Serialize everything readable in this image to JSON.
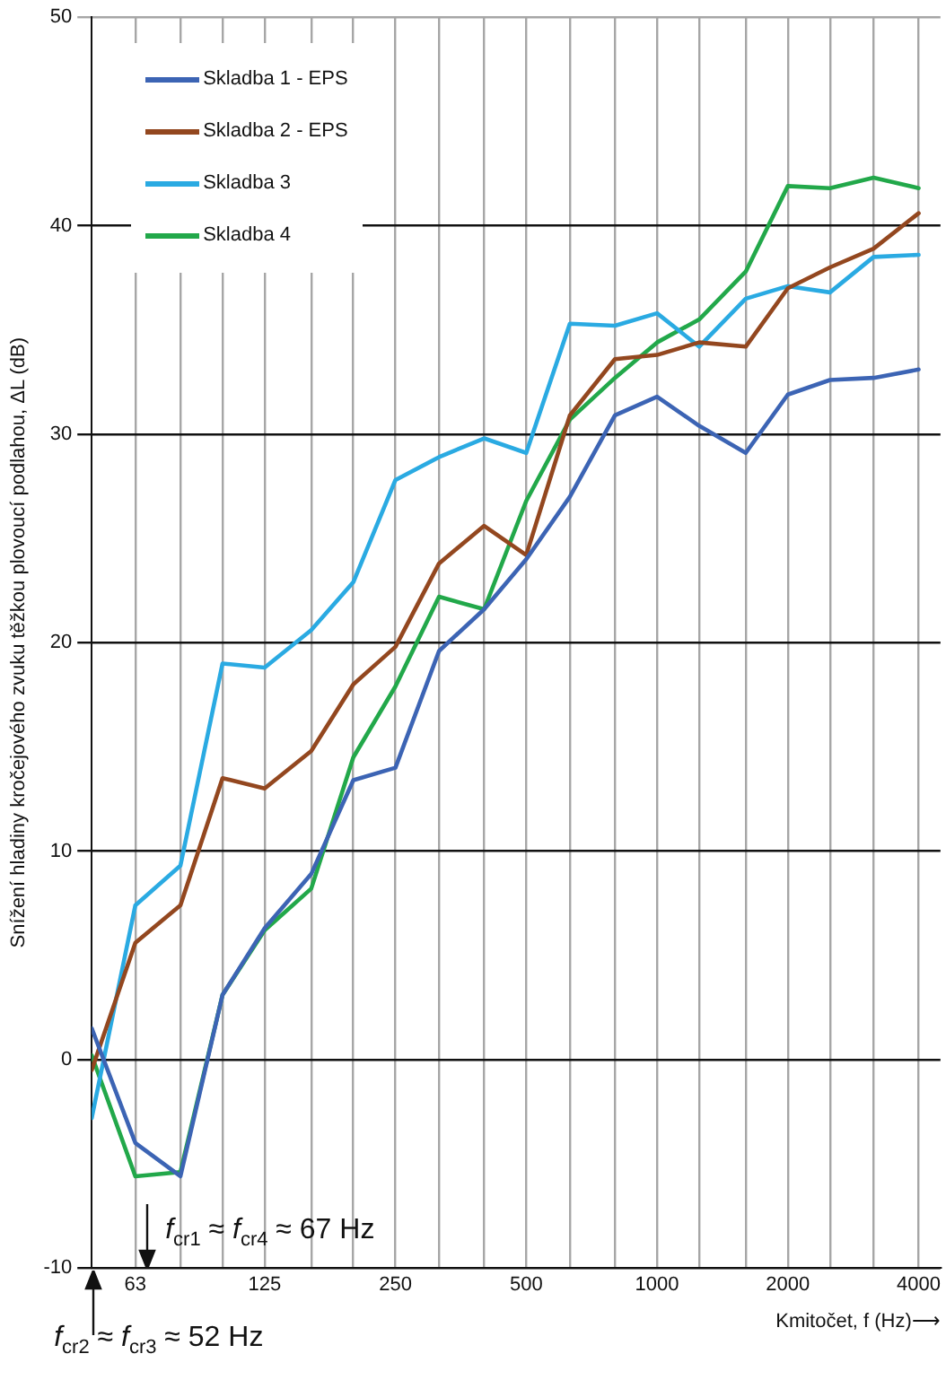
{
  "chart_data": {
    "type": "line",
    "ylabel": "Snížení hladiny kročejového zvuku těžkou plovoucí podlahou, ΔL (dB)",
    "xlabel": "Kmitočet, f (Hz)⟶",
    "x": [
      50,
      63,
      80,
      100,
      125,
      160,
      200,
      250,
      315,
      400,
      500,
      630,
      800,
      1000,
      1250,
      1600,
      2000,
      2500,
      3150,
      4000
    ],
    "series": [
      {
        "name": "Skladba 1 - EPS",
        "color": "#3c64b4",
        "values": [
          1.5,
          -4.0,
          -5.6,
          3.1,
          6.3,
          8.9,
          13.4,
          14.0,
          19.6,
          21.6,
          24.0,
          27.0,
          30.9,
          31.8,
          30.4,
          29.1,
          31.9,
          32.6,
          32.7,
          33.1
        ]
      },
      {
        "name": "Skladba 2 - EPS",
        "color": "#93471f",
        "values": [
          -0.5,
          5.6,
          7.4,
          13.5,
          13.0,
          14.8,
          18.0,
          19.8,
          23.8,
          25.6,
          24.2,
          30.9,
          33.6,
          33.8,
          34.4,
          34.2,
          37.0,
          38.0,
          38.9,
          40.6
        ]
      },
      {
        "name": "Skladba 3",
        "color": "#2aaae2",
        "values": [
          -2.8,
          7.4,
          9.3,
          19.0,
          18.8,
          20.6,
          22.9,
          27.8,
          28.9,
          29.8,
          29.1,
          35.3,
          35.2,
          35.8,
          34.2,
          36.5,
          37.1,
          36.8,
          38.5,
          38.6
        ]
      },
      {
        "name": "Skladba 4",
        "color": "#22a84a",
        "values": [
          0.2,
          -5.6,
          -5.4,
          3.1,
          6.2,
          8.2,
          14.5,
          17.9,
          22.2,
          21.6,
          26.8,
          30.7,
          32.7,
          34.4,
          35.5,
          37.8,
          41.9,
          41.8,
          42.3,
          41.8
        ]
      }
    ],
    "log": "x",
    "xlim": [
      50,
      4490
    ],
    "xticks": [
      {
        "value": 63,
        "label": "63"
      },
      {
        "value": 80,
        "label": null
      },
      {
        "value": 100,
        "label": null
      },
      {
        "value": 125,
        "label": "125"
      },
      {
        "value": 160,
        "label": null
      },
      {
        "value": 200,
        "label": null
      },
      {
        "value": 250,
        "label": "250"
      },
      {
        "value": 315,
        "label": null
      },
      {
        "value": 400,
        "label": null
      },
      {
        "value": 500,
        "label": "500"
      },
      {
        "value": 630,
        "label": null
      },
      {
        "value": 800,
        "label": null
      },
      {
        "value": 1000,
        "label": "1000"
      },
      {
        "value": 1250,
        "label": null
      },
      {
        "value": 1600,
        "label": null
      },
      {
        "value": 2000,
        "label": "2000"
      },
      {
        "value": 2500,
        "label": null
      },
      {
        "value": 3150,
        "label": null
      },
      {
        "value": 4000,
        "label": "4000"
      }
    ],
    "ylim": [
      -10,
      50
    ],
    "yticks": [
      -10,
      0,
      10,
      20,
      30,
      40,
      50
    ],
    "grid": true,
    "legend": "top left",
    "marker": "none",
    "annotations": [
      "f$_{cr1}$ ≈ f$_{cr4}$ ≈ 67 Hz",
      "f$_{cr2}$ ≈ f$_{cr3}$ ≈ 52 Hz"
    ]
  }
}
